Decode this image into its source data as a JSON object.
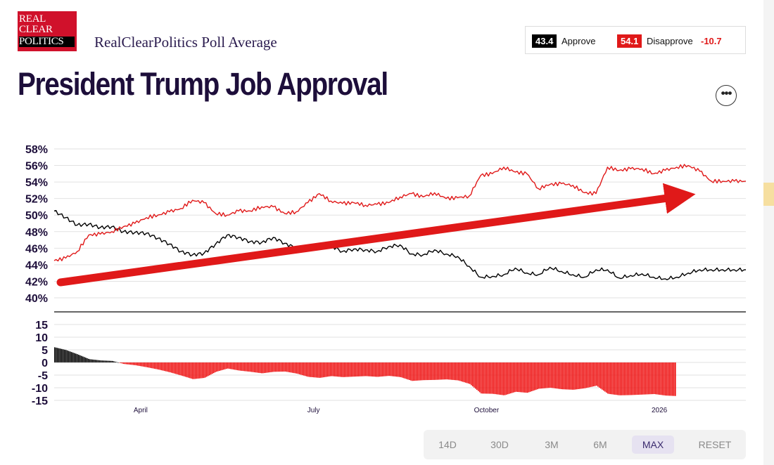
{
  "logo": {
    "line1": "REAL",
    "line2": "CLEAR",
    "line3": "POLITICS"
  },
  "header": {
    "subtitle": "RealClearPolitics Poll Average",
    "title": "President Trump Job Approval"
  },
  "summary": {
    "approve_value": "43.4",
    "approve_label": "Approve",
    "disapprove_value": "54.1",
    "disapprove_label": "Disapprove",
    "spread": "-10.7",
    "approve_color": "#000000",
    "disapprove_color": "#e01919"
  },
  "menu": {
    "icon": "more-horizontal-icon",
    "glyph": "•••"
  },
  "range_buttons": [
    "14D",
    "30D",
    "3M",
    "6M",
    "MAX",
    "RESET"
  ],
  "active_range": "MAX",
  "chart_data": {
    "type": "line",
    "title": "President Trump Job Approval",
    "y_ticks": [
      "58%",
      "56%",
      "54%",
      "52%",
      "50%",
      "48%",
      "46%",
      "44%",
      "42%",
      "40%"
    ],
    "ylim": [
      40,
      58
    ],
    "x_ticks": [
      "April",
      "July",
      "October",
      "2026"
    ],
    "x_tick_positions_month": [
      2,
      5,
      8,
      11
    ],
    "xlim_months": [
      0.5,
      12.5
    ],
    "series": [
      {
        "name": "Approve",
        "color": "#000000",
        "x": [
          0.5,
          0.7,
          0.9,
          1.1,
          1.3,
          1.5,
          1.7,
          1.9,
          2.1,
          2.3,
          2.5,
          2.7,
          2.9,
          3.1,
          3.3,
          3.5,
          3.7,
          3.9,
          4.1,
          4.3,
          4.5,
          4.7,
          4.9,
          5.1,
          5.3,
          5.5,
          5.7,
          5.9,
          6.1,
          6.3,
          6.5,
          6.7,
          6.9,
          7.1,
          7.3,
          7.5,
          7.7,
          7.9,
          8.1,
          8.3,
          8.5,
          8.7,
          8.9,
          9.1,
          9.3,
          9.5,
          9.7,
          9.9,
          10.1,
          10.3,
          10.5,
          10.7,
          10.9,
          11.1,
          11.3,
          11.5,
          11.7,
          11.9,
          12.1,
          12.3,
          12.5
        ],
        "values": [
          50.5,
          49.7,
          48.8,
          48.9,
          48.5,
          48.6,
          48.0,
          47.9,
          47.8,
          47.2,
          46.5,
          45.6,
          45.2,
          45.4,
          46.5,
          47.6,
          47.3,
          46.8,
          46.7,
          47.3,
          46.6,
          46.0,
          45.8,
          46.5,
          46.3,
          45.6,
          45.9,
          45.8,
          45.6,
          46.2,
          46.4,
          45.3,
          45.2,
          45.8,
          45.3,
          45.0,
          43.8,
          42.5,
          42.6,
          42.8,
          43.6,
          43.0,
          42.8,
          43.7,
          43.2,
          42.8,
          42.5,
          43.4,
          43.4,
          42.4,
          42.7,
          42.9,
          42.5,
          42.3,
          42.5,
          43.0,
          43.4,
          43.4,
          43.4,
          43.4,
          43.4
        ]
      },
      {
        "name": "Disapprove",
        "color": "#e01919",
        "x": [
          0.5,
          0.7,
          0.9,
          1.1,
          1.3,
          1.5,
          1.7,
          1.9,
          2.1,
          2.3,
          2.5,
          2.7,
          2.9,
          3.1,
          3.3,
          3.5,
          3.7,
          3.9,
          4.1,
          4.3,
          4.5,
          4.7,
          4.9,
          5.1,
          5.3,
          5.5,
          5.7,
          5.9,
          6.1,
          6.3,
          6.5,
          6.7,
          6.9,
          7.1,
          7.3,
          7.5,
          7.7,
          7.9,
          8.1,
          8.3,
          8.5,
          8.7,
          8.9,
          9.1,
          9.3,
          9.5,
          9.7,
          9.9,
          10.1,
          10.3,
          10.5,
          10.7,
          10.9,
          11.1,
          11.3,
          11.5,
          11.7,
          11.9,
          12.1,
          12.3,
          12.5
        ],
        "values": [
          44.5,
          44.8,
          45.6,
          47.6,
          47.7,
          48.0,
          48.6,
          49.0,
          49.7,
          50.0,
          50.4,
          50.8,
          51.8,
          51.5,
          50.2,
          50.0,
          50.5,
          50.5,
          51.0,
          51.0,
          50.2,
          50.4,
          51.5,
          52.6,
          51.7,
          51.4,
          51.5,
          51.2,
          51.3,
          51.5,
          52.2,
          52.6,
          52.2,
          52.7,
          52.0,
          52.1,
          52.3,
          54.8,
          55.0,
          55.8,
          55.2,
          55.0,
          53.2,
          53.7,
          53.8,
          53.6,
          52.7,
          52.6,
          55.8,
          55.4,
          55.6,
          55.6,
          55.0,
          55.4,
          55.8,
          56.0,
          55.3,
          54.1,
          54.1,
          54.1,
          54.1
        ]
      }
    ],
    "spread_panel": {
      "y_ticks": [
        "15",
        "10",
        "5",
        "0",
        "-5",
        "-10",
        "-15"
      ],
      "ylim": [
        -15,
        15
      ],
      "positive_color": "#000000",
      "negative_color": "#ee0f0f"
    }
  }
}
